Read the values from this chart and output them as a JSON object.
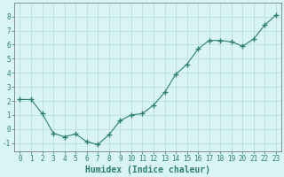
{
  "x": [
    0,
    1,
    2,
    3,
    4,
    5,
    6,
    7,
    8,
    9,
    10,
    11,
    12,
    13,
    14,
    15,
    16,
    17,
    18,
    19,
    20,
    21,
    22,
    23
  ],
  "y": [
    2.1,
    2.1,
    1.1,
    -0.3,
    -0.55,
    -0.35,
    -0.9,
    -1.1,
    -0.4,
    0.6,
    1.0,
    1.1,
    1.7,
    2.6,
    3.9,
    4.6,
    5.7,
    6.3,
    6.3,
    6.2,
    5.9,
    6.4,
    7.4,
    8.1
  ],
  "xlabel": "Humidex (Indice chaleur)",
  "xlim": [
    -0.5,
    23.5
  ],
  "ylim": [
    -1.6,
    9.0
  ],
  "yticks": [
    -1,
    0,
    1,
    2,
    3,
    4,
    5,
    6,
    7,
    8
  ],
  "xticks": [
    0,
    1,
    2,
    3,
    4,
    5,
    6,
    7,
    8,
    9,
    10,
    11,
    12,
    13,
    14,
    15,
    16,
    17,
    18,
    19,
    20,
    21,
    22,
    23
  ],
  "line_color": "#2d7f72",
  "marker": "+",
  "marker_size": 4,
  "line_width": 0.8,
  "bg_color": "#d8f4f4",
  "grid_color": "#b8dada",
  "axis_color": "#666666",
  "tick_label_color": "#2d7f72",
  "xlabel_color": "#2d7f72",
  "xlabel_fontsize": 7,
  "tick_fontsize": 5.5
}
